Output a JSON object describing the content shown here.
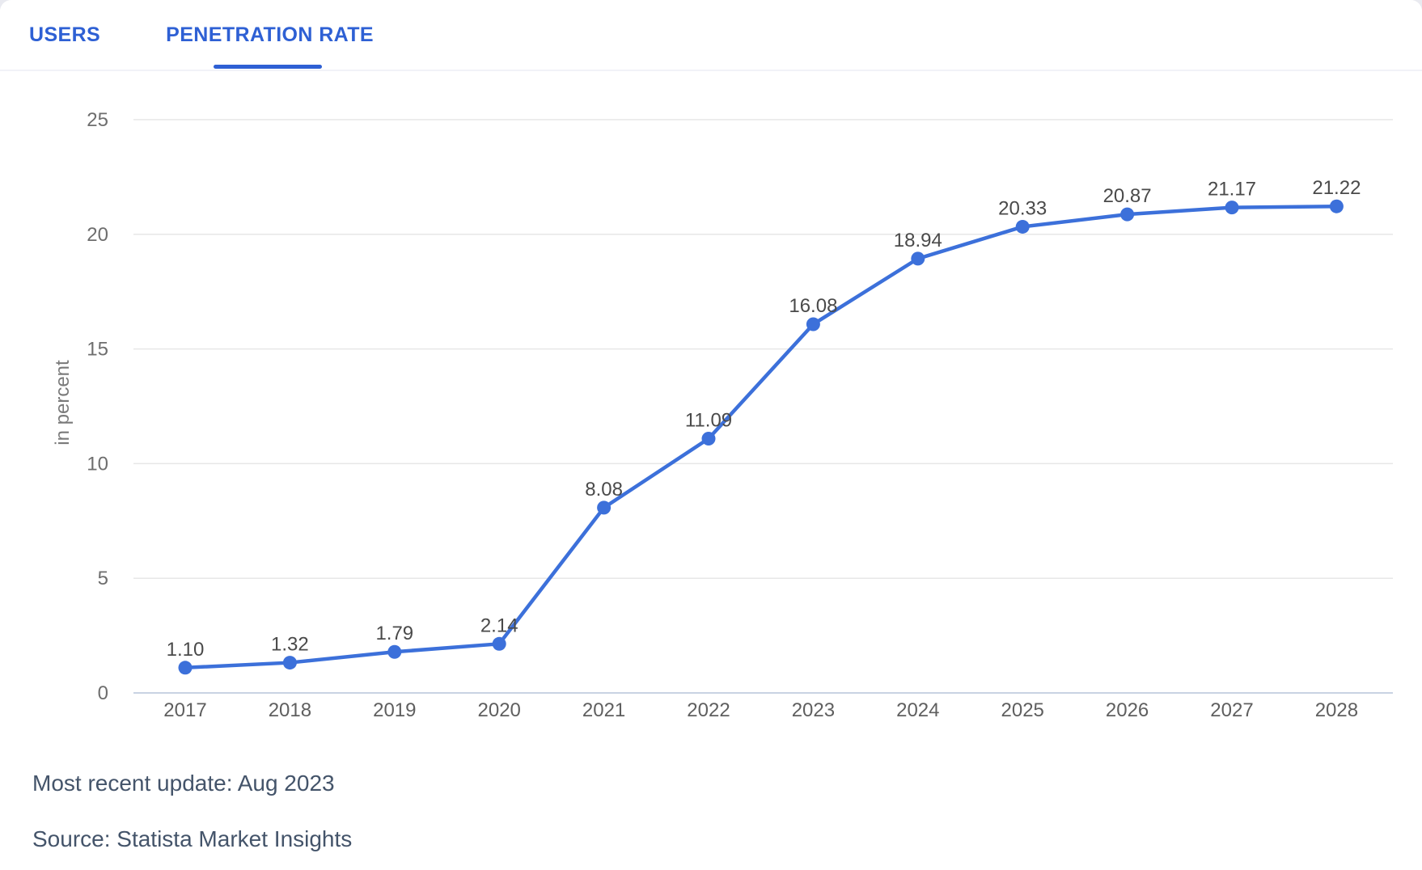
{
  "tabs": [
    {
      "label": "USERS",
      "active": false
    },
    {
      "label": "PENETRATION RATE",
      "active": true
    }
  ],
  "accent_color": "#2e60d4",
  "chart_data": {
    "type": "line",
    "categories": [
      "2017",
      "2018",
      "2019",
      "2020",
      "2021",
      "2022",
      "2023",
      "2024",
      "2025",
      "2026",
      "2027",
      "2028"
    ],
    "values": [
      1.1,
      1.32,
      1.79,
      2.14,
      8.08,
      11.09,
      16.08,
      18.94,
      20.33,
      20.87,
      21.17,
      21.22
    ],
    "point_labels": [
      "1.10",
      "1.32",
      "1.79",
      "2.14",
      "8.08",
      "11.09",
      "16.08",
      "18.94",
      "20.33",
      "20.87",
      "21.17",
      "21.22"
    ],
    "title": "",
    "xlabel": "",
    "ylabel": "in percent",
    "ylim": [
      0,
      25
    ],
    "yticks": [
      0,
      5,
      10,
      15,
      20,
      25
    ],
    "grid": true,
    "legend": false,
    "line_color": "#3c70da",
    "marker_color": "#3c70da",
    "gridline_color": "#e7e7e7",
    "zeroline_color": "#c9d3e3"
  },
  "footer": {
    "update_note": "Most recent update: Aug 2023",
    "source": "Source: Statista Market Insights"
  }
}
